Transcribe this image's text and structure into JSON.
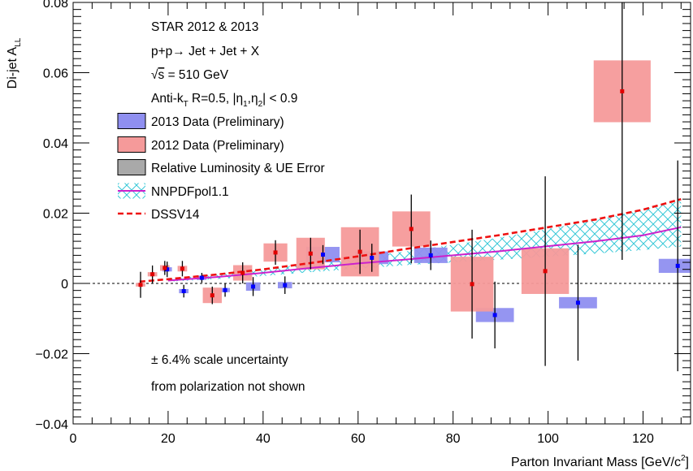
{
  "chart_data": {
    "type": "scatter",
    "xlabel": "Parton Invariant Mass [GeV/c²]",
    "ylabel": "Di-jet A_LL",
    "xlim": [
      0,
      130
    ],
    "ylim": [
      -0.04,
      0.08
    ],
    "x_ticks": [
      "0",
      "20",
      "40",
      "60",
      "80",
      "100",
      "120"
    ],
    "y_ticks": [
      "−0.04",
      "−0.02",
      "0",
      "0.02",
      "0.04",
      "0.06",
      "0.08"
    ],
    "info": {
      "line1": "STAR 2012 & 2013",
      "line2": "p+p→ Jet + Jet + X",
      "line3": "√s = 510 GeV",
      "line4": "Anti-k_T R=0.5, |η1,η2| < 0.9"
    },
    "note": {
      "line1": "± 6.4% scale uncertainty",
      "line2": "from polarization not shown"
    },
    "legend": [
      {
        "label": "2013 Data (Preliminary)",
        "kind": "box-blue"
      },
      {
        "label": "2012 Data (Preliminary)",
        "kind": "box-red"
      },
      {
        "label": "Relative Luminosity & UE Error",
        "kind": "box-gray"
      },
      {
        "label": "NNPDFpol1.1",
        "kind": "hatch"
      },
      {
        "label": "DSSV14",
        "kind": "dashed"
      }
    ],
    "colors": {
      "data2013": "#0000ff",
      "sys2013": "#8f8ff0",
      "data2012": "#e00000",
      "sys2012": "#f59a9a",
      "nnpdf_band": "#38c8d8",
      "nnpdf_line": "#cc22cc",
      "dssv": "#ee1111"
    },
    "series": [
      {
        "name": "2013 Data (Preliminary)",
        "points": [
          {
            "x": 19.8,
            "y": 0.004,
            "err": 0.0022,
            "sx": 1.0,
            "sy": 0.0006
          },
          {
            "x": 23.3,
            "y": -0.0022,
            "err": 0.0018,
            "sx": 1.0,
            "sy": 0.0006
          },
          {
            "x": 27.1,
            "y": 0.0016,
            "err": 0.0014,
            "sx": 1.0,
            "sy": 0.0006
          },
          {
            "x": 32.0,
            "y": -0.0019,
            "err": 0.0019,
            "sx": 1.0,
            "sy": 0.0006
          },
          {
            "x": 37.9,
            "y": -0.0009,
            "err": 0.0027,
            "sx": 1.5,
            "sy": 0.0012
          },
          {
            "x": 44.6,
            "y": -0.0005,
            "err": 0.0025,
            "sx": 1.5,
            "sy": 0.0009
          },
          {
            "x": 52.6,
            "y": 0.0082,
            "err": 0.0027,
            "sx": 3.5,
            "sy": 0.0022
          },
          {
            "x": 62.9,
            "y": 0.0073,
            "err": 0.004,
            "sx": 3.5,
            "sy": 0.0018
          },
          {
            "x": 75.3,
            "y": 0.008,
            "err": 0.0042,
            "sx": 3.5,
            "sy": 0.0022
          },
          {
            "x": 88.8,
            "y": -0.009,
            "err": 0.0095,
            "sx": 4.0,
            "sy": 0.002
          },
          {
            "x": 106.3,
            "y": -0.0055,
            "err": 0.0165,
            "sx": 4.0,
            "sy": 0.0016
          },
          {
            "x": 127.3,
            "y": 0.005,
            "err": 0.03,
            "sx": 4.0,
            "sy": 0.002
          }
        ]
      },
      {
        "name": "2012 Data (Preliminary)",
        "points": [
          {
            "x": 14.2,
            "y": -0.0004,
            "err": 0.0037,
            "sx": 1.0,
            "sy": 0.0005
          },
          {
            "x": 16.7,
            "y": 0.0026,
            "err": 0.0025,
            "sx": 1.0,
            "sy": 0.0006
          },
          {
            "x": 19.3,
            "y": 0.0044,
            "err": 0.002,
            "sx": 1.0,
            "sy": 0.0008
          },
          {
            "x": 23.0,
            "y": 0.0042,
            "err": 0.0022,
            "sx": 1.0,
            "sy": 0.0008
          },
          {
            "x": 29.3,
            "y": -0.0034,
            "err": 0.0025,
            "sx": 2.0,
            "sy": 0.0022
          },
          {
            "x": 35.7,
            "y": 0.003,
            "err": 0.003,
            "sx": 2.0,
            "sy": 0.0022
          },
          {
            "x": 42.6,
            "y": 0.0088,
            "err": 0.0035,
            "sx": 2.5,
            "sy": 0.0026
          },
          {
            "x": 50.0,
            "y": 0.0085,
            "err": 0.0045,
            "sx": 3.0,
            "sy": 0.0045
          },
          {
            "x": 60.4,
            "y": 0.009,
            "err": 0.0063,
            "sx": 4.0,
            "sy": 0.007
          },
          {
            "x": 71.2,
            "y": 0.0155,
            "err": 0.0098,
            "sx": 4.0,
            "sy": 0.005
          },
          {
            "x": 84.0,
            "y": -0.0002,
            "err": 0.0155,
            "sx": 4.5,
            "sy": 0.0078
          },
          {
            "x": 99.4,
            "y": 0.0035,
            "err": 0.027,
            "sx": 5.0,
            "sy": 0.0065
          },
          {
            "x": 115.6,
            "y": 0.0547,
            "err": 0.048,
            "sx": 6.0,
            "sy": 0.0088
          }
        ]
      }
    ],
    "nnpdf": {
      "x": [
        20,
        30,
        40,
        50,
        60,
        70,
        80,
        90,
        100,
        110,
        120,
        128
      ],
      "center": [
        0.0008,
        0.0018,
        0.003,
        0.0044,
        0.0057,
        0.0068,
        0.008,
        0.0092,
        0.0106,
        0.012,
        0.0137,
        0.016
      ],
      "lower": [
        0.0005,
        0.0012,
        0.0021,
        0.0032,
        0.0042,
        0.0052,
        0.006,
        0.0068,
        0.0076,
        0.0085,
        0.0095,
        0.0105
      ],
      "upper": [
        0.0012,
        0.0025,
        0.004,
        0.0057,
        0.0074,
        0.0091,
        0.011,
        0.0131,
        0.0155,
        0.018,
        0.021,
        0.0235
      ]
    },
    "dssv": {
      "x": [
        14,
        20,
        30,
        40,
        50,
        60,
        70,
        80,
        90,
        100,
        110,
        120,
        128
      ],
      "y": [
        0.0005,
        0.0012,
        0.0025,
        0.004,
        0.0058,
        0.0077,
        0.0098,
        0.0118,
        0.0138,
        0.016,
        0.0182,
        0.021,
        0.024
      ]
    }
  }
}
